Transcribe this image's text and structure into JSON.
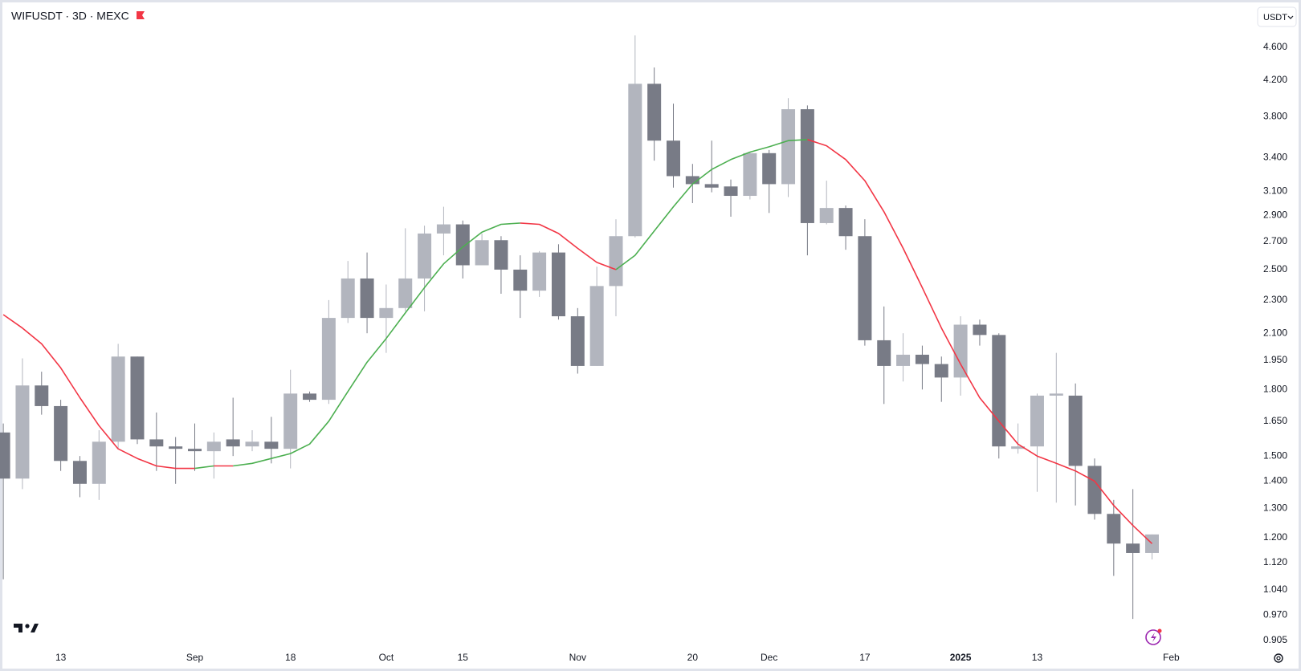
{
  "chart_data": {
    "type": "candlestick",
    "title": "WIFUSDT · 3D · MEXC",
    "currency": "USDT",
    "categories": [
      null,
      null,
      null,
      "13",
      null,
      null,
      null,
      null,
      null,
      null,
      "Sep",
      null,
      null,
      null,
      null,
      "18",
      null,
      null,
      null,
      null,
      "Oct",
      null,
      null,
      null,
      "15",
      null,
      null,
      null,
      null,
      null,
      "Nov",
      null,
      null,
      null,
      null,
      null,
      "20",
      null,
      null,
      null,
      "Dec",
      null,
      null,
      null,
      null,
      "17",
      null,
      null,
      null,
      null,
      "2025",
      null,
      null,
      null,
      "13",
      null,
      null,
      null,
      null,
      null,
      null,
      "Feb"
    ],
    "open": [
      1.6,
      1.41,
      1.82,
      1.72,
      1.48,
      1.39,
      1.56,
      1.97,
      1.57,
      1.54,
      1.53,
      1.52,
      1.57,
      1.54,
      1.56,
      1.53,
      1.78,
      1.75,
      2.19,
      2.44,
      2.19,
      2.25,
      2.44,
      2.76,
      2.83,
      2.53,
      2.71,
      2.5,
      2.36,
      2.62,
      2.2,
      1.92,
      2.39,
      2.74,
      4.16,
      3.56,
      3.23,
      3.16,
      3.14,
      3.06,
      3.44,
      3.16,
      3.88,
      2.84,
      2.96,
      2.74,
      2.06,
      1.92,
      1.98,
      1.93,
      1.86,
      2.15,
      2.09,
      1.53,
      1.54,
      1.77,
      1.77,
      1.46,
      1.28,
      1.18,
      1.15,
      null
    ],
    "high": [
      1.64,
      1.96,
      1.89,
      1.75,
      1.5,
      1.61,
      2.04,
      1.97,
      1.69,
      1.58,
      1.64,
      1.6,
      1.76,
      1.61,
      1.67,
      1.9,
      1.79,
      2.3,
      2.56,
      2.62,
      2.4,
      2.8,
      2.82,
      2.97,
      2.86,
      2.76,
      2.74,
      2.6,
      2.63,
      2.68,
      2.25,
      2.52,
      2.87,
      4.75,
      4.35,
      3.94,
      3.34,
      3.56,
      3.2,
      3.45,
      3.47,
      4.0,
      3.92,
      3.19,
      2.98,
      2.87,
      2.26,
      2.1,
      2.03,
      1.97,
      2.2,
      2.18,
      2.1,
      1.64,
      1.78,
      1.99,
      1.83,
      1.49,
      1.33,
      1.37,
      1.21,
      null
    ],
    "low": [
      1.07,
      1.37,
      1.68,
      1.44,
      1.34,
      1.33,
      1.53,
      1.55,
      1.44,
      1.39,
      1.44,
      1.41,
      1.5,
      1.52,
      1.47,
      1.45,
      1.74,
      1.73,
      2.16,
      2.1,
      1.99,
      2.23,
      2.23,
      2.6,
      2.44,
      2.53,
      2.34,
      2.19,
      2.32,
      2.18,
      1.88,
      1.92,
      2.2,
      2.73,
      3.37,
      3.13,
      3.0,
      3.09,
      2.89,
      3.03,
      2.92,
      3.05,
      2.6,
      2.83,
      2.64,
      2.03,
      1.73,
      1.84,
      1.8,
      1.74,
      1.77,
      2.03,
      1.49,
      1.51,
      1.36,
      1.32,
      1.31,
      1.26,
      1.08,
      0.96,
      1.13,
      null
    ],
    "close": [
      1.41,
      1.82,
      1.72,
      1.48,
      1.39,
      1.56,
      1.97,
      1.57,
      1.54,
      1.53,
      1.52,
      1.56,
      1.54,
      1.56,
      1.53,
      1.78,
      1.75,
      2.19,
      2.44,
      2.19,
      2.25,
      2.44,
      2.76,
      2.83,
      2.53,
      2.71,
      2.5,
      2.36,
      2.62,
      2.2,
      1.92,
      2.39,
      2.74,
      4.16,
      3.56,
      3.23,
      3.16,
      3.13,
      3.06,
      3.44,
      3.16,
      3.88,
      2.84,
      2.96,
      2.74,
      2.06,
      1.92,
      1.98,
      1.93,
      1.86,
      2.15,
      2.09,
      1.54,
      1.54,
      1.77,
      1.78,
      1.46,
      1.28,
      1.18,
      1.15,
      1.21,
      null
    ],
    "up_color": "#b2b5be",
    "down_color": "#787b86",
    "ma": {
      "values": [
        2.21,
        2.13,
        2.04,
        1.91,
        1.76,
        1.63,
        1.53,
        1.49,
        1.46,
        1.45,
        1.45,
        1.46,
        1.46,
        1.47,
        1.49,
        1.51,
        1.55,
        1.65,
        1.79,
        1.94,
        2.07,
        2.22,
        2.38,
        2.54,
        2.66,
        2.77,
        2.83,
        2.84,
        2.83,
        2.76,
        2.65,
        2.55,
        2.5,
        2.6,
        2.78,
        2.97,
        3.16,
        3.29,
        3.38,
        3.45,
        3.5,
        3.56,
        3.57,
        3.51,
        3.38,
        3.19,
        2.93,
        2.65,
        2.38,
        2.13,
        1.93,
        1.76,
        1.65,
        1.55,
        1.5,
        1.47,
        1.44,
        1.4,
        1.31,
        1.24,
        1.18,
        null
      ],
      "up_color": "#4caf50",
      "down_color": "#f23645"
    },
    "log_scale": true,
    "grid": false,
    "ylim": [
      0.889,
      5.12
    ],
    "yticks": [
      {
        "value": 4.6,
        "label": "4.600"
      },
      {
        "value": 4.2,
        "label": "4.200"
      },
      {
        "value": 3.8,
        "label": "3.800"
      },
      {
        "value": 3.4,
        "label": "3.400"
      },
      {
        "value": 3.1,
        "label": "3.100"
      },
      {
        "value": 2.9,
        "label": "2.900"
      },
      {
        "value": 2.7,
        "label": "2.700"
      },
      {
        "value": 2.5,
        "label": "2.500"
      },
      {
        "value": 2.3,
        "label": "2.300"
      },
      {
        "value": 2.1,
        "label": "2.100"
      },
      {
        "value": 1.95,
        "label": "1.950"
      },
      {
        "value": 1.8,
        "label": "1.800"
      },
      {
        "value": 1.65,
        "label": "1.650"
      },
      {
        "value": 1.5,
        "label": "1.500"
      },
      {
        "value": 1.4,
        "label": "1.400"
      },
      {
        "value": 1.3,
        "label": "1.300"
      },
      {
        "value": 1.2,
        "label": "1.200"
      },
      {
        "value": 1.12,
        "label": "1.120"
      },
      {
        "value": 1.04,
        "label": "1.040"
      },
      {
        "value": 0.97,
        "label": "0.970"
      },
      {
        "value": 0.905,
        "label": "0.905"
      }
    ]
  }
}
